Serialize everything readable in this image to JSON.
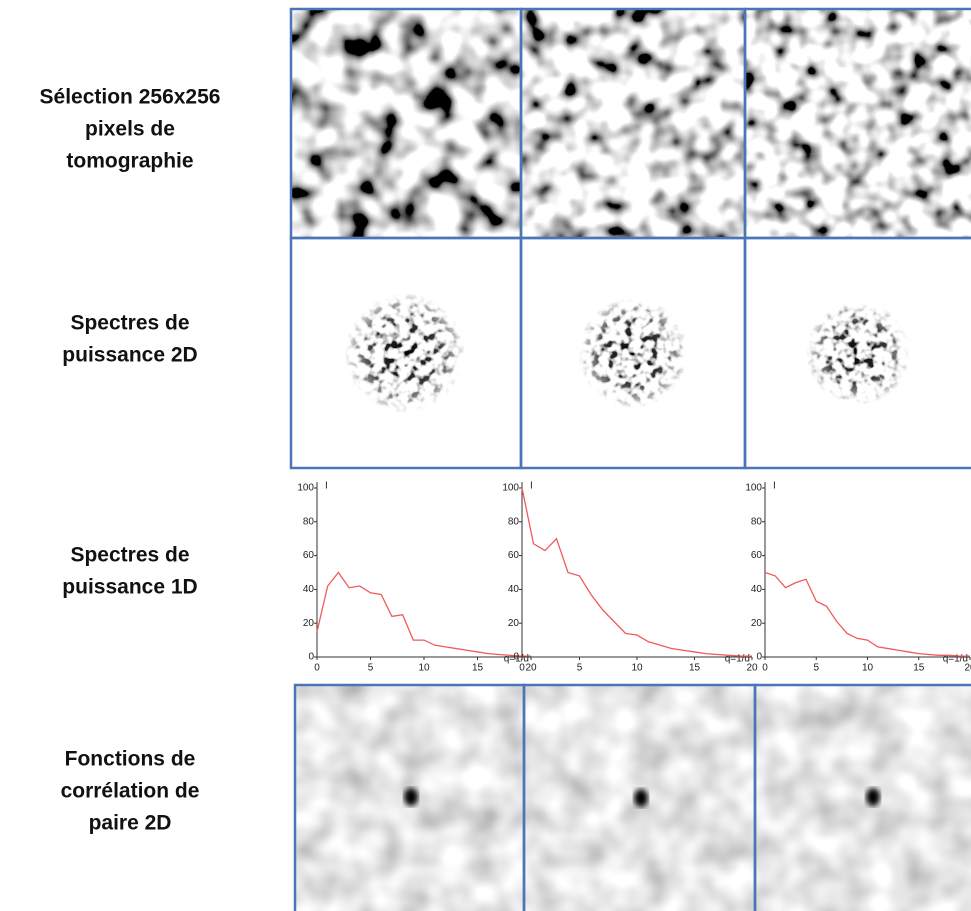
{
  "row_labels": [
    [
      "Sélection 256x256",
      "pixels de",
      "tomographie"
    ],
    [
      "Spectres de",
      "puissance 2D"
    ],
    [
      "Spectres de",
      "puissance 1D"
    ],
    [
      "Fonctions de",
      "corrélation de",
      "paire 2D"
    ]
  ],
  "chart_data": [
    {
      "type": "line",
      "x_label": "q=1/d",
      "y_label": "I",
      "color": "#f05a5a",
      "x": [
        0,
        1,
        2,
        3,
        4,
        5,
        6,
        7,
        8,
        9,
        10,
        11,
        12,
        13,
        14,
        15,
        16,
        17,
        18,
        19,
        20
      ],
      "values": [
        15,
        42,
        50,
        41,
        42,
        38,
        37,
        24,
        25,
        10,
        10,
        7,
        6,
        5,
        4,
        3,
        2,
        1.5,
        1,
        0.5,
        0.5
      ],
      "xlim": [
        0,
        20
      ],
      "ylim": [
        0,
        100
      ],
      "xticks": [
        0,
        5,
        10,
        15,
        20
      ],
      "yticks": [
        0,
        20,
        40,
        60,
        80,
        100
      ]
    },
    {
      "type": "line",
      "x_label": "q=1/d",
      "y_label": "I",
      "color": "#f05a5a",
      "x": [
        0,
        1,
        2,
        3,
        4,
        5,
        6,
        7,
        8,
        9,
        10,
        11,
        12,
        13,
        14,
        15,
        16,
        17,
        18,
        19,
        20
      ],
      "values": [
        100,
        67,
        63,
        70,
        50,
        48,
        37,
        28,
        21,
        14,
        13,
        9,
        7,
        5,
        4,
        3,
        2,
        1.5,
        1,
        0.5,
        0.5
      ],
      "xlim": [
        0,
        20
      ],
      "ylim": [
        0,
        100
      ],
      "xticks": [
        0,
        5,
        10,
        15,
        20
      ],
      "yticks": [
        0,
        20,
        40,
        60,
        80,
        100
      ]
    },
    {
      "type": "line",
      "x_label": "q=1/d",
      "y_label": "I",
      "color": "#f05a5a",
      "x": [
        0,
        1,
        2,
        3,
        4,
        5,
        6,
        7,
        8,
        9,
        10,
        11,
        12,
        13,
        14,
        15,
        16,
        17,
        18,
        19,
        20
      ],
      "values": [
        50,
        48,
        41,
        44,
        46,
        33,
        30,
        21,
        14,
        11,
        10,
        6,
        5,
        4,
        3,
        2,
        1.5,
        1,
        1,
        0.5,
        0.5
      ],
      "xlim": [
        0,
        20
      ],
      "ylim": [
        0,
        100
      ],
      "xticks": [
        0,
        5,
        10,
        15,
        20
      ],
      "yticks": [
        0,
        20,
        40,
        60,
        80,
        100
      ]
    }
  ]
}
